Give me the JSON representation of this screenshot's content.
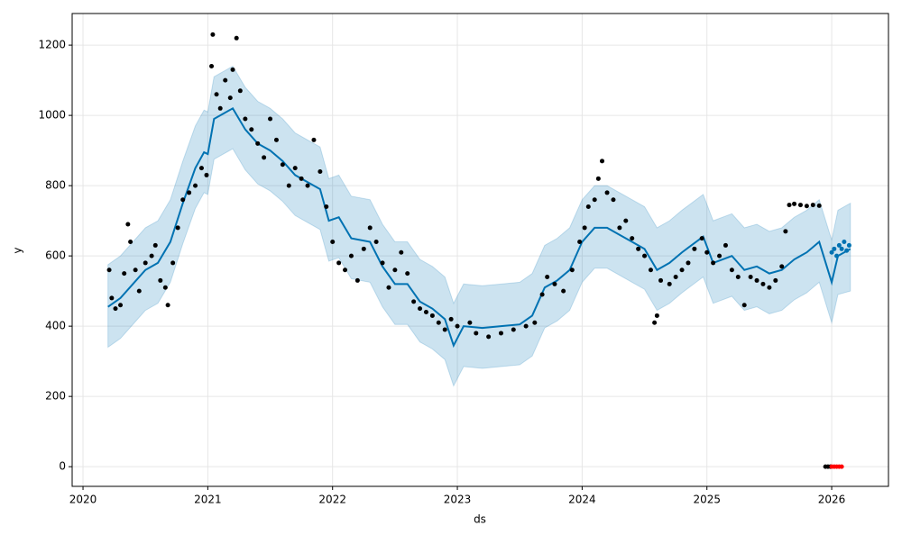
{
  "chart_data": {
    "type": "scatter",
    "xlabel": "ds",
    "ylabel": "y",
    "xlim": [
      2019.913,
      2026.455
    ],
    "xticks": [
      2020,
      2021,
      2022,
      2023,
      2024,
      2025,
      2026
    ],
    "ylim": [
      -56,
      1290
    ],
    "yticks": [
      0,
      200,
      400,
      600,
      800,
      1000,
      1200
    ],
    "grid": true,
    "series": [
      {
        "type": "band",
        "color": "#0072b2",
        "x": [
          2020.2,
          2020.3,
          2020.4,
          2020.5,
          2020.6,
          2020.7,
          2020.8,
          2020.9,
          2020.97,
          2021.0,
          2021.05,
          2021.2,
          2021.3,
          2021.4,
          2021.5,
          2021.6,
          2021.7,
          2021.8,
          2021.9,
          2021.97,
          2022.05,
          2022.15,
          2022.3,
          2022.4,
          2022.5,
          2022.6,
          2022.7,
          2022.8,
          2022.9,
          2022.97,
          2023.05,
          2023.2,
          2023.35,
          2023.5,
          2023.6,
          2023.7,
          2023.8,
          2023.9,
          2024.0,
          2024.1,
          2024.2,
          2024.3,
          2024.4,
          2024.5,
          2024.6,
          2024.7,
          2024.8,
          2024.97,
          2025.05,
          2025.2,
          2025.3,
          2025.4,
          2025.5,
          2025.6,
          2025.7,
          2025.8,
          2025.9,
          2026.0,
          2026.05,
          2026.15
        ],
        "lower": [
          340,
          365,
          405,
          445,
          465,
          525,
          635,
          735,
          780,
          775,
          875,
          905,
          845,
          805,
          785,
          755,
          715,
          695,
          675,
          585,
          595,
          535,
          525,
          455,
          405,
          405,
          355,
          335,
          305,
          230,
          285,
          280,
          285,
          290,
          315,
          395,
          415,
          445,
          525,
          565,
          565,
          545,
          525,
          505,
          445,
          465,
          495,
          540,
          465,
          485,
          445,
          455,
          435,
          445,
          475,
          495,
          525,
          410,
          490,
          500
        ],
        "upper": [
          575,
          600,
          640,
          680,
          700,
          760,
          870,
          970,
          1015,
          1010,
          1110,
          1140,
          1080,
          1040,
          1020,
          990,
          950,
          930,
          910,
          820,
          830,
          770,
          760,
          690,
          640,
          640,
          590,
          570,
          540,
          465,
          520,
          515,
          520,
          525,
          550,
          630,
          650,
          680,
          760,
          800,
          800,
          780,
          760,
          740,
          680,
          700,
          730,
          775,
          700,
          720,
          680,
          690,
          670,
          680,
          710,
          730,
          760,
          645,
          730,
          750
        ]
      },
      {
        "type": "line",
        "color": "#0072b2",
        "x": [
          2020.2,
          2020.3,
          2020.4,
          2020.5,
          2020.6,
          2020.7,
          2020.8,
          2020.9,
          2020.97,
          2021.0,
          2021.05,
          2021.2,
          2021.3,
          2021.4,
          2021.5,
          2021.6,
          2021.7,
          2021.8,
          2021.9,
          2021.97,
          2022.05,
          2022.15,
          2022.3,
          2022.4,
          2022.5,
          2022.6,
          2022.7,
          2022.8,
          2022.9,
          2022.97,
          2023.05,
          2023.2,
          2023.35,
          2023.5,
          2023.6,
          2023.7,
          2023.8,
          2023.9,
          2024.0,
          2024.1,
          2024.2,
          2024.3,
          2024.4,
          2024.5,
          2024.6,
          2024.7,
          2024.8,
          2024.97,
          2025.05,
          2025.2,
          2025.3,
          2025.4,
          2025.5,
          2025.6,
          2025.7,
          2025.8,
          2025.9,
          2026.0,
          2026.05,
          2026.15
        ],
        "values": [
          455,
          480,
          520,
          560,
          580,
          640,
          750,
          850,
          895,
          890,
          990,
          1020,
          960,
          920,
          900,
          870,
          830,
          810,
          790,
          700,
          710,
          650,
          640,
          570,
          520,
          520,
          470,
          450,
          420,
          345,
          400,
          395,
          400,
          405,
          430,
          510,
          530,
          560,
          640,
          680,
          680,
          660,
          640,
          620,
          560,
          580,
          610,
          655,
          580,
          600,
          560,
          570,
          550,
          560,
          590,
          610,
          640,
          525,
          600,
          620
        ]
      },
      {
        "type": "scatter",
        "color": "#000000",
        "x": [
          2020.21,
          2020.23,
          2020.26,
          2020.3,
          2020.33,
          2020.36,
          2020.38,
          2020.42,
          2020.45,
          2020.5,
          2020.55,
          2020.58,
          2020.62,
          2020.66,
          2020.68,
          2020.72,
          2020.76,
          2020.8,
          2020.85,
          2020.9,
          2020.95,
          2020.99,
          2021.03,
          2021.04,
          2021.07,
          2021.1,
          2021.14,
          2021.18,
          2021.2,
          2021.23,
          2021.26,
          2021.3,
          2021.35,
          2021.4,
          2021.45,
          2021.5,
          2021.55,
          2021.6,
          2021.65,
          2021.7,
          2021.75,
          2021.8,
          2021.85,
          2021.9,
          2021.95,
          2022.0,
          2022.05,
          2022.1,
          2022.15,
          2022.2,
          2022.25,
          2022.3,
          2022.35,
          2022.4,
          2022.45,
          2022.5,
          2022.55,
          2022.6,
          2022.65,
          2022.7,
          2022.75,
          2022.8,
          2022.85,
          2022.9,
          2022.95,
          2023.0,
          2023.1,
          2023.15,
          2023.25,
          2023.35,
          2023.45,
          2023.55,
          2023.62,
          2023.68,
          2023.72,
          2023.78,
          2023.85,
          2023.92,
          2023.98,
          2024.02,
          2024.05,
          2024.1,
          2024.13,
          2024.16,
          2024.2,
          2024.25,
          2024.3,
          2024.35,
          2024.4,
          2024.45,
          2024.5,
          2024.55,
          2024.58,
          2024.6,
          2024.63,
          2024.7,
          2024.75,
          2024.8,
          2024.85,
          2024.9,
          2024.96,
          2025.0,
          2025.05,
          2025.1,
          2025.15,
          2025.2,
          2025.25,
          2025.3,
          2025.35,
          2025.4,
          2025.45,
          2025.5,
          2025.55,
          2025.6,
          2025.63,
          2025.66,
          2025.7,
          2025.75,
          2025.8,
          2025.85,
          2025.9,
          2025.95,
          2025.97,
          2025.99
        ],
        "values": [
          560,
          480,
          450,
          460,
          550,
          690,
          640,
          560,
          500,
          580,
          600,
          630,
          530,
          510,
          460,
          580,
          680,
          760,
          780,
          800,
          850,
          830,
          1140,
          1230,
          1060,
          1020,
          1100,
          1050,
          1130,
          1220,
          1070,
          990,
          960,
          920,
          880,
          990,
          930,
          860,
          800,
          850,
          820,
          800,
          930,
          840,
          740,
          640,
          580,
          560,
          600,
          530,
          620,
          680,
          640,
          580,
          510,
          560,
          610,
          550,
          470,
          450,
          440,
          430,
          410,
          390,
          420,
          400,
          410,
          380,
          370,
          380,
          390,
          400,
          410,
          490,
          540,
          520,
          500,
          560,
          640,
          680,
          740,
          760,
          820,
          870,
          780,
          760,
          680,
          700,
          650,
          620,
          600,
          560,
          410,
          430,
          530,
          520,
          540,
          560,
          580,
          620,
          650,
          610,
          580,
          600,
          630,
          560,
          540,
          460,
          540,
          530,
          520,
          510,
          530,
          570,
          670,
          745,
          748,
          745,
          742,
          745,
          743,
          0,
          0,
          0
        ]
      },
      {
        "type": "scatter",
        "color": "#ff0000",
        "x": [
          2026.0,
          2026.02,
          2026.04,
          2026.06,
          2026.08
        ],
        "values": [
          0,
          0,
          0,
          0,
          0
        ]
      },
      {
        "type": "scatter",
        "color": "#0072b2",
        "x": [
          2026.0,
          2026.02,
          2026.04,
          2026.06,
          2026.08,
          2026.1,
          2026.12,
          2026.14
        ],
        "values": [
          610,
          620,
          600,
          630,
          620,
          640,
          615,
          630
        ]
      }
    ]
  }
}
